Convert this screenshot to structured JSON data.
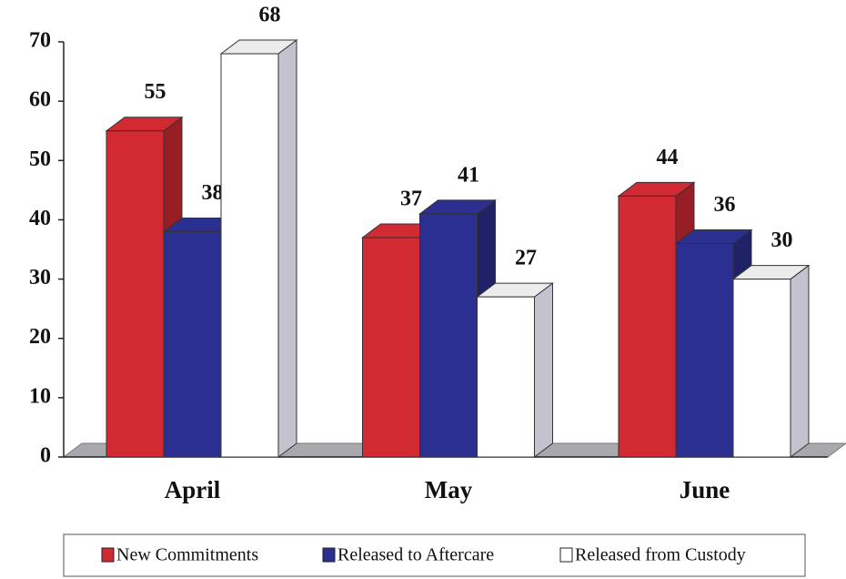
{
  "chart_data": {
    "type": "bar3d",
    "categories": [
      "April",
      "May",
      "June"
    ],
    "series": [
      {
        "name": "New Commitments",
        "color": "#d22a32",
        "values": [
          55,
          37,
          44
        ]
      },
      {
        "name": "Released to Aftercare",
        "color": "#2b2f8f",
        "values": [
          38,
          41,
          36
        ]
      },
      {
        "name": "Released from Custody",
        "color": "#ffffff",
        "values": [
          68,
          27,
          30
        ]
      }
    ],
    "ylim": [
      0,
      70
    ],
    "yticks": [
      0,
      10,
      20,
      30,
      40,
      50,
      60,
      70
    ],
    "legend": "bottom"
  }
}
